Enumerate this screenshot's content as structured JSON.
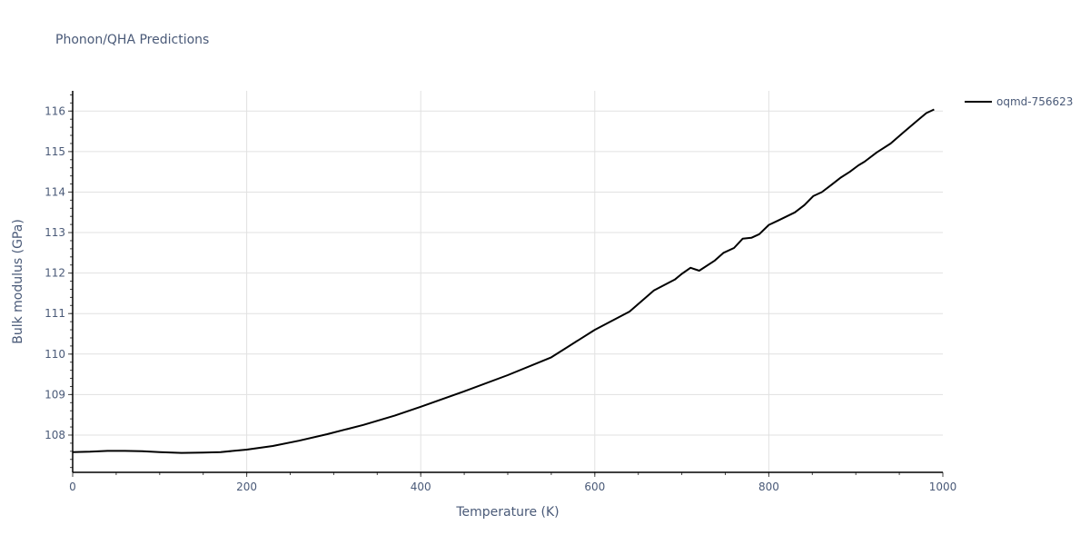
{
  "title": "Phonon/QHA Predictions",
  "legend": {
    "items": [
      {
        "label": "oqmd-756623",
        "color": "#000000"
      }
    ]
  },
  "chart_data": {
    "type": "line",
    "title": "Phonon/QHA Predictions",
    "xlabel": "Temperature (K)",
    "ylabel": "Bulk modulus (GPa)",
    "xlim": [
      0,
      1000
    ],
    "ylim": [
      107.08,
      116.5
    ],
    "x_ticks": [
      0,
      200,
      400,
      600,
      800,
      1000
    ],
    "y_ticks": [
      108,
      109,
      110,
      111,
      112,
      113,
      114,
      115,
      116
    ],
    "grid": true,
    "legend_position": "top-right-outside",
    "series": [
      {
        "name": "oqmd-756623",
        "color": "#000000",
        "x": [
          0,
          20,
          40,
          60,
          80,
          100,
          125,
          150,
          170,
          200,
          230,
          260,
          292,
          334,
          370,
          400,
          450,
          500,
          550,
          600,
          640,
          668,
          692,
          700,
          710,
          720,
          738,
          748,
          760,
          770,
          780,
          789,
          800,
          811,
          830,
          841,
          851,
          861,
          872,
          882,
          893,
          903,
          910,
          924,
          940,
          955,
          971,
          981,
          990
        ],
        "values": [
          107.58,
          107.59,
          107.61,
          107.61,
          107.6,
          107.58,
          107.56,
          107.57,
          107.58,
          107.64,
          107.73,
          107.86,
          108.02,
          108.25,
          108.48,
          108.7,
          109.08,
          109.48,
          109.92,
          110.6,
          111.05,
          111.57,
          111.84,
          111.98,
          112.13,
          112.06,
          112.31,
          112.5,
          112.62,
          112.85,
          112.87,
          112.96,
          113.19,
          113.3,
          113.5,
          113.68,
          113.9,
          114.0,
          114.18,
          114.35,
          114.5,
          114.66,
          114.75,
          114.98,
          115.2,
          115.48,
          115.77,
          115.95,
          116.04
        ]
      }
    ]
  }
}
